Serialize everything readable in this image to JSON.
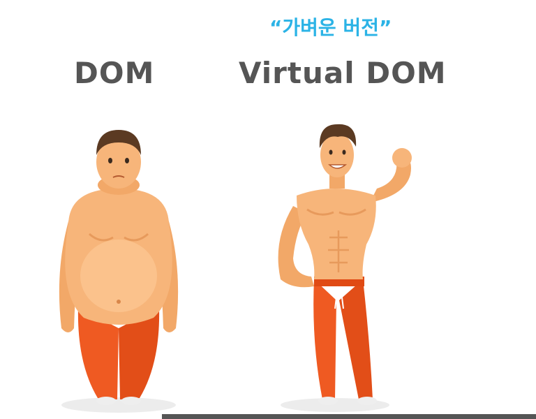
{
  "subtitle": "“가벼운 버전”",
  "labels": {
    "left": "DOM",
    "right": "Virtual DOM"
  },
  "colors": {
    "accent": "#2bb3e6",
    "text": "#555555",
    "skin": "#f7b57a",
    "pants": "#ef5a22"
  }
}
